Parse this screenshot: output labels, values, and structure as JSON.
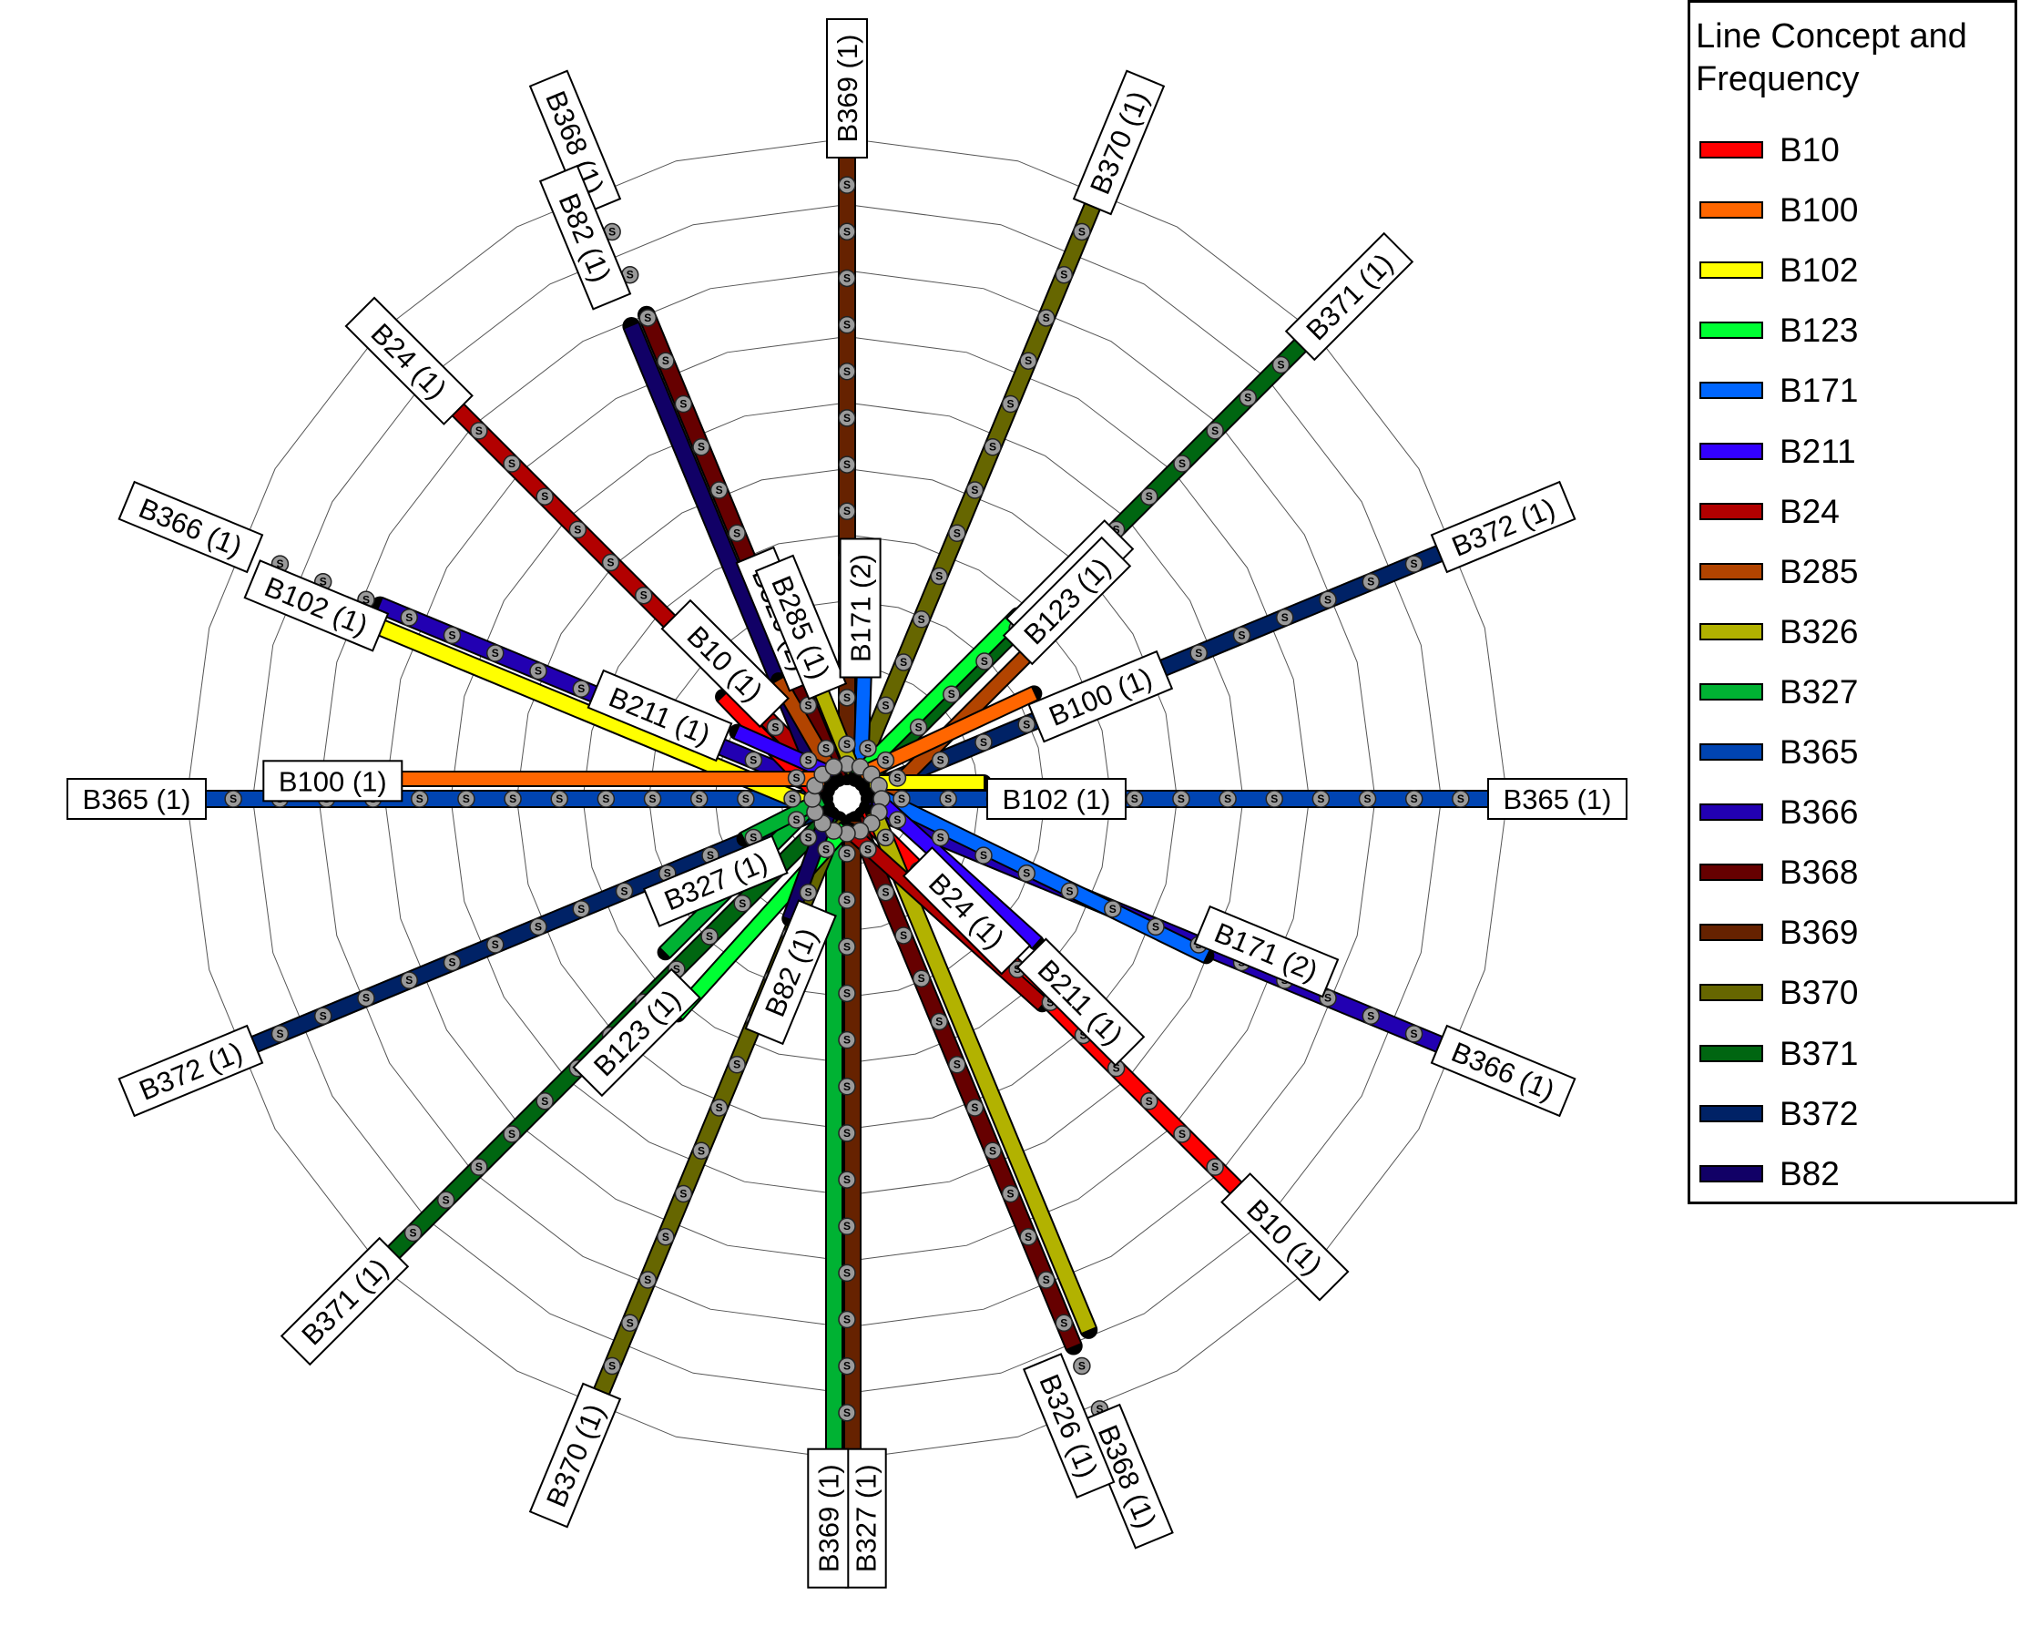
{
  "legend": {
    "title_line1": "Line Concept and",
    "title_line2": "Frequency",
    "items": [
      {
        "name": "B10",
        "color": "#ff0000"
      },
      {
        "name": "B100",
        "color": "#ff6600"
      },
      {
        "name": "B102",
        "color": "#ffff00"
      },
      {
        "name": "B123",
        "color": "#00ff33"
      },
      {
        "name": "B171",
        "color": "#0066ff"
      },
      {
        "name": "B211",
        "color": "#3300ff"
      },
      {
        "name": "B24",
        "color": "#b20000"
      },
      {
        "name": "B285",
        "color": "#b24400"
      },
      {
        "name": "B326",
        "color": "#b2b200"
      },
      {
        "name": "B327",
        "color": "#00b233"
      },
      {
        "name": "B365",
        "color": "#0044b2"
      },
      {
        "name": "B366",
        "color": "#2200b2"
      },
      {
        "name": "B368",
        "color": "#660000"
      },
      {
        "name": "B369",
        "color": "#662200"
      },
      {
        "name": "B370",
        "color": "#666600"
      },
      {
        "name": "B371",
        "color": "#006611"
      },
      {
        "name": "B372",
        "color": "#002266"
      },
      {
        "name": "B82",
        "color": "#110066"
      }
    ]
  },
  "stop_symbol": "S",
  "terminal_labels": [
    "B369 (1)",
    "B370 (1)",
    "B371 (1)",
    "B372 (1)",
    "B365 (1)",
    "B366 (1)",
    "B10 (1)",
    "B368 (1)",
    "B326 (1)",
    "B327 (1)",
    "B369 (1)",
    "B370 (1)",
    "B371 (1)",
    "B372 (1)",
    "B365 (1)",
    "B366 (1)",
    "B24 (1)",
    "B368 (1)",
    "B82 (1)",
    "B102 (1)",
    "B10 (1)",
    "B326 (2)",
    "B285 (1)",
    "B171 (2)",
    "B285 (1)",
    "B123 (1)",
    "B100 (1)",
    "B102 (1)",
    "B171 (2)",
    "B24 (1)",
    "B211 (1)",
    "B82 (1)",
    "B123 (1)",
    "B327 (1)",
    "B100 (1)",
    "B211 (1)"
  ]
}
